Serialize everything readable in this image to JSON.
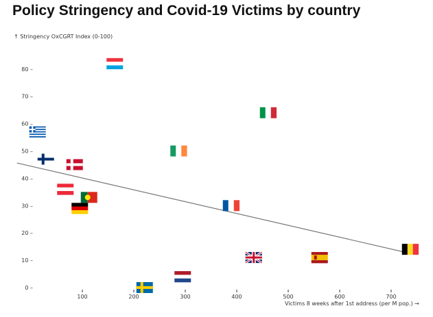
{
  "chart_data": {
    "type": "scatter",
    "title": "Policy Stringency and Covid-19 Victims by country",
    "ylabel": "↑ Stringency OxCGRT Index (0-100)",
    "xlabel": "Victims 8 weeks after 1st address (per M pop.) →",
    "xlim": [
      -35,
      760
    ],
    "ylim": [
      0,
      90
    ],
    "xticks": [
      100,
      200,
      300,
      400,
      500,
      600,
      700
    ],
    "yticks": [
      0,
      10,
      20,
      30,
      40,
      50,
      60,
      70,
      80
    ],
    "grid": false,
    "marker": "country flag",
    "points": [
      {
        "flag": "luxembourg-flag",
        "x": 163,
        "y": 82
      },
      {
        "flag": "italy-flag",
        "x": 461,
        "y": 64
      },
      {
        "flag": "greece-flag",
        "x": 13,
        "y": 57
      },
      {
        "flag": "ireland-flag",
        "x": 287,
        "y": 50
      },
      {
        "flag": "finland-flag",
        "x": 29,
        "y": 47
      },
      {
        "flag": "denmark-flag",
        "x": 85,
        "y": 45
      },
      {
        "flag": "austria-flag",
        "x": 67,
        "y": 36
      },
      {
        "flag": "portugal-flag",
        "x": 113,
        "y": 33
      },
      {
        "flag": "germany-flag",
        "x": 95,
        "y": 29
      },
      {
        "flag": "france-flag",
        "x": 389,
        "y": 30
      },
      {
        "flag": "uk-flag",
        "x": 433,
        "y": 11
      },
      {
        "flag": "spain-flag",
        "x": 561,
        "y": 11
      },
      {
        "flag": "belgium-flag",
        "x": 737,
        "y": 14
      },
      {
        "flag": "netherlands-flag",
        "x": 295,
        "y": 4
      },
      {
        "flag": "sweden-flag",
        "x": 221,
        "y": 0
      }
    ],
    "trendline": {
      "x": [
        -27,
        737
      ],
      "y": [
        45.6,
        12.5
      ],
      "color": "#777777"
    }
  }
}
